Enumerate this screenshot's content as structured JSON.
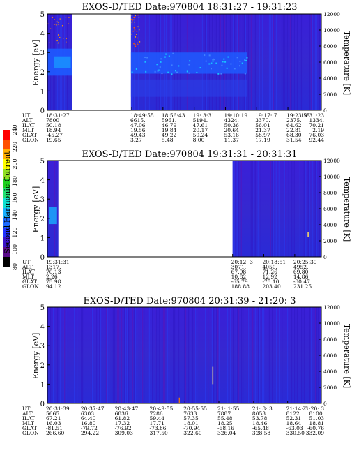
{
  "chart_data": [
    {
      "type": "heatmap",
      "title": "EXOS-D/TED   Date:970804   18:31:27 - 19:31:23",
      "ylabel": "Energy [eV]",
      "y2label": "Temperature [K]",
      "ylim": [
        0,
        5
      ],
      "y2lim": [
        0,
        12000
      ],
      "yticks": [
        "0",
        "1",
        "2",
        "3",
        "4",
        "5"
      ],
      "y2ticks": [
        "0",
        "2000",
        "4000",
        "6000",
        "8000",
        "10000",
        "12000"
      ],
      "ephemeris_labels": [
        "UT",
        "ALT",
        "ILAT",
        "MLT",
        "GLAT",
        "GLON"
      ],
      "ephemeris": [
        {
          "time": "18:31:27",
          "frac": 0.0,
          "vals": [
            "7800",
            "50.18",
            "18.94",
            "-45.27",
            "19.65"
          ]
        },
        {
          "time": "18:49:55",
          "frac": 0.308,
          "vals": [
            "6615.",
            "47.06",
            "19.56",
            "49.43",
            "3.27"
          ]
        },
        {
          "time": "18:56:43",
          "frac": 0.422,
          "vals": [
            "5961.",
            "46.79",
            "19.84",
            "49.22",
            "5.48"
          ]
        },
        {
          "time": "19: 3:31",
          "frac": 0.536,
          "vals": [
            "5194.",
            "47.61",
            "20.17",
            "50.24",
            "8.00"
          ]
        },
        {
          "time": "19:10:19",
          "frac": 0.65,
          "vals": [
            "4324.",
            "50.36",
            "20.64",
            "53.16",
            "11.37"
          ]
        },
        {
          "time": "19:17: 7",
          "frac": 0.764,
          "vals": [
            "3370.",
            "56.01",
            "21.37",
            "58.97",
            "17.19"
          ]
        },
        {
          "time": "19:23:55",
          "frac": 0.878,
          "vals": [
            "2375.",
            "64.62",
            "22.81",
            "68.30",
            "31.54"
          ]
        },
        {
          "time": "19:31:23",
          "frac": 1.0,
          "vals": [
            "1334.",
            "70.21",
            "2.19",
            "76.03",
            "92.44"
          ]
        }
      ],
      "data_spans": [
        [
          0.0,
          0.09
        ],
        [
          0.305,
          1.0
        ]
      ],
      "gap_color": "#ffffff"
    },
    {
      "type": "heatmap",
      "title": "EXOS-D/TED   Date:970804   19:31:31 - 20:31:31",
      "ylabel": "Energy [eV]",
      "y2label": "Temperature [K]",
      "ylim": [
        0,
        5
      ],
      "y2lim": [
        0,
        12000
      ],
      "yticks": [
        "0",
        "1",
        "2",
        "3",
        "4",
        "5"
      ],
      "y2ticks": [
        "0",
        "2000",
        "4000",
        "6000",
        "8000",
        "10000",
        "12000"
      ],
      "ephemeris_labels": [
        "UT",
        "ALT",
        "ILAT",
        "MLT",
        "GLAT",
        "GLON"
      ],
      "ephemeris": [
        {
          "time": "19:31:31",
          "frac": 0.0,
          "vals": [
            "1317.",
            "70.13",
            "2.26",
            "75.98",
            "94.12"
          ]
        },
        {
          "time": "20:12: 3",
          "frac": 0.676,
          "vals": [
            "3071.",
            "67.98",
            "10.82",
            "-65.79",
            "188.88"
          ]
        },
        {
          "time": "20:18:51",
          "frac": 0.79,
          "vals": [
            "4050.",
            "71.26",
            "12.92",
            "-75.10",
            "203.40"
          ]
        },
        {
          "time": "20:25:39",
          "frac": 0.903,
          "vals": [
            "4952.",
            "69.80",
            "14.86",
            "-80.47",
            "231.25"
          ]
        }
      ],
      "data_spans": [
        [
          0.0,
          0.04
        ],
        [
          0.676,
          1.0
        ]
      ],
      "gap_color": "#ffffff"
    },
    {
      "type": "heatmap",
      "title": "EXOS-D/TED   Date:970804   20:31:39 - 21:20: 3",
      "ylabel": "Energy [eV]",
      "y2label": "Temperature [K]",
      "ylim": [
        0,
        5
      ],
      "y2lim": [
        0,
        12000
      ],
      "yticks": [
        "0",
        "1",
        "2",
        "3",
        "4",
        "5"
      ],
      "y2ticks": [
        "0",
        "2000",
        "4000",
        "6000",
        "8000",
        "10000",
        "12000"
      ],
      "ephemeris_labels": [
        "UT",
        "ALT",
        "ILAT",
        "MLT",
        "GLAT",
        "GLON"
      ],
      "ephemeris": [
        {
          "time": "20:31:39",
          "frac": 0.0,
          "vals": [
            "5665.",
            "67.21",
            "16.03",
            "-81.51",
            "266.60"
          ]
        },
        {
          "time": "20:37:47",
          "frac": 0.127,
          "vals": [
            "6303.",
            "64.40",
            "16.80",
            "-79.72",
            "294.22"
          ]
        },
        {
          "time": "20:43:47",
          "frac": 0.251,
          "vals": [
            "6836.",
            "61.82",
            "17.32",
            "-76.92",
            "309.03"
          ]
        },
        {
          "time": "20:49:55",
          "frac": 0.378,
          "vals": [
            "7286.",
            "59.44",
            "17.71",
            "-73.86",
            "317.50"
          ]
        },
        {
          "time": "20:55:55",
          "frac": 0.502,
          "vals": [
            "7633.",
            "57.35",
            "18.01",
            "-70.94",
            "322.60"
          ]
        },
        {
          "time": "21: 1:55",
          "frac": 0.626,
          "vals": [
            "7887.",
            "55.48",
            "18.25",
            "-68.16",
            "326.04"
          ]
        },
        {
          "time": "21: 8: 3",
          "frac": 0.753,
          "vals": [
            "8053.",
            "53.78",
            "18.46",
            "-65.48",
            "328.58"
          ]
        },
        {
          "time": "21:14: 3",
          "frac": 0.877,
          "vals": [
            "8122.",
            "52.31",
            "18.64",
            "-63.03",
            "330.50"
          ]
        },
        {
          "time": "21:20: 3",
          "frac": 1.0,
          "vals": [
            "8100.",
            "51.03",
            "18.81",
            "-60.76",
            "332.09"
          ]
        }
      ],
      "data_spans": [
        [
          0.0,
          1.0
        ]
      ],
      "gap_color": "#ffffff"
    }
  ],
  "colorbar": {
    "label": "Second Harmonic Current",
    "ticks": [
      "80",
      "100",
      "120",
      "140",
      "160",
      "180",
      "200",
      "220",
      "240"
    ],
    "colors": [
      "#000000",
      "#5a0a8a",
      "#3a12c8",
      "#2030ff",
      "#1d6aff",
      "#19b0ff",
      "#10e0d0",
      "#20e070",
      "#20d020",
      "#90e020",
      "#ffff00",
      "#ffb000",
      "#ff5000",
      "#ff0000"
    ]
  }
}
